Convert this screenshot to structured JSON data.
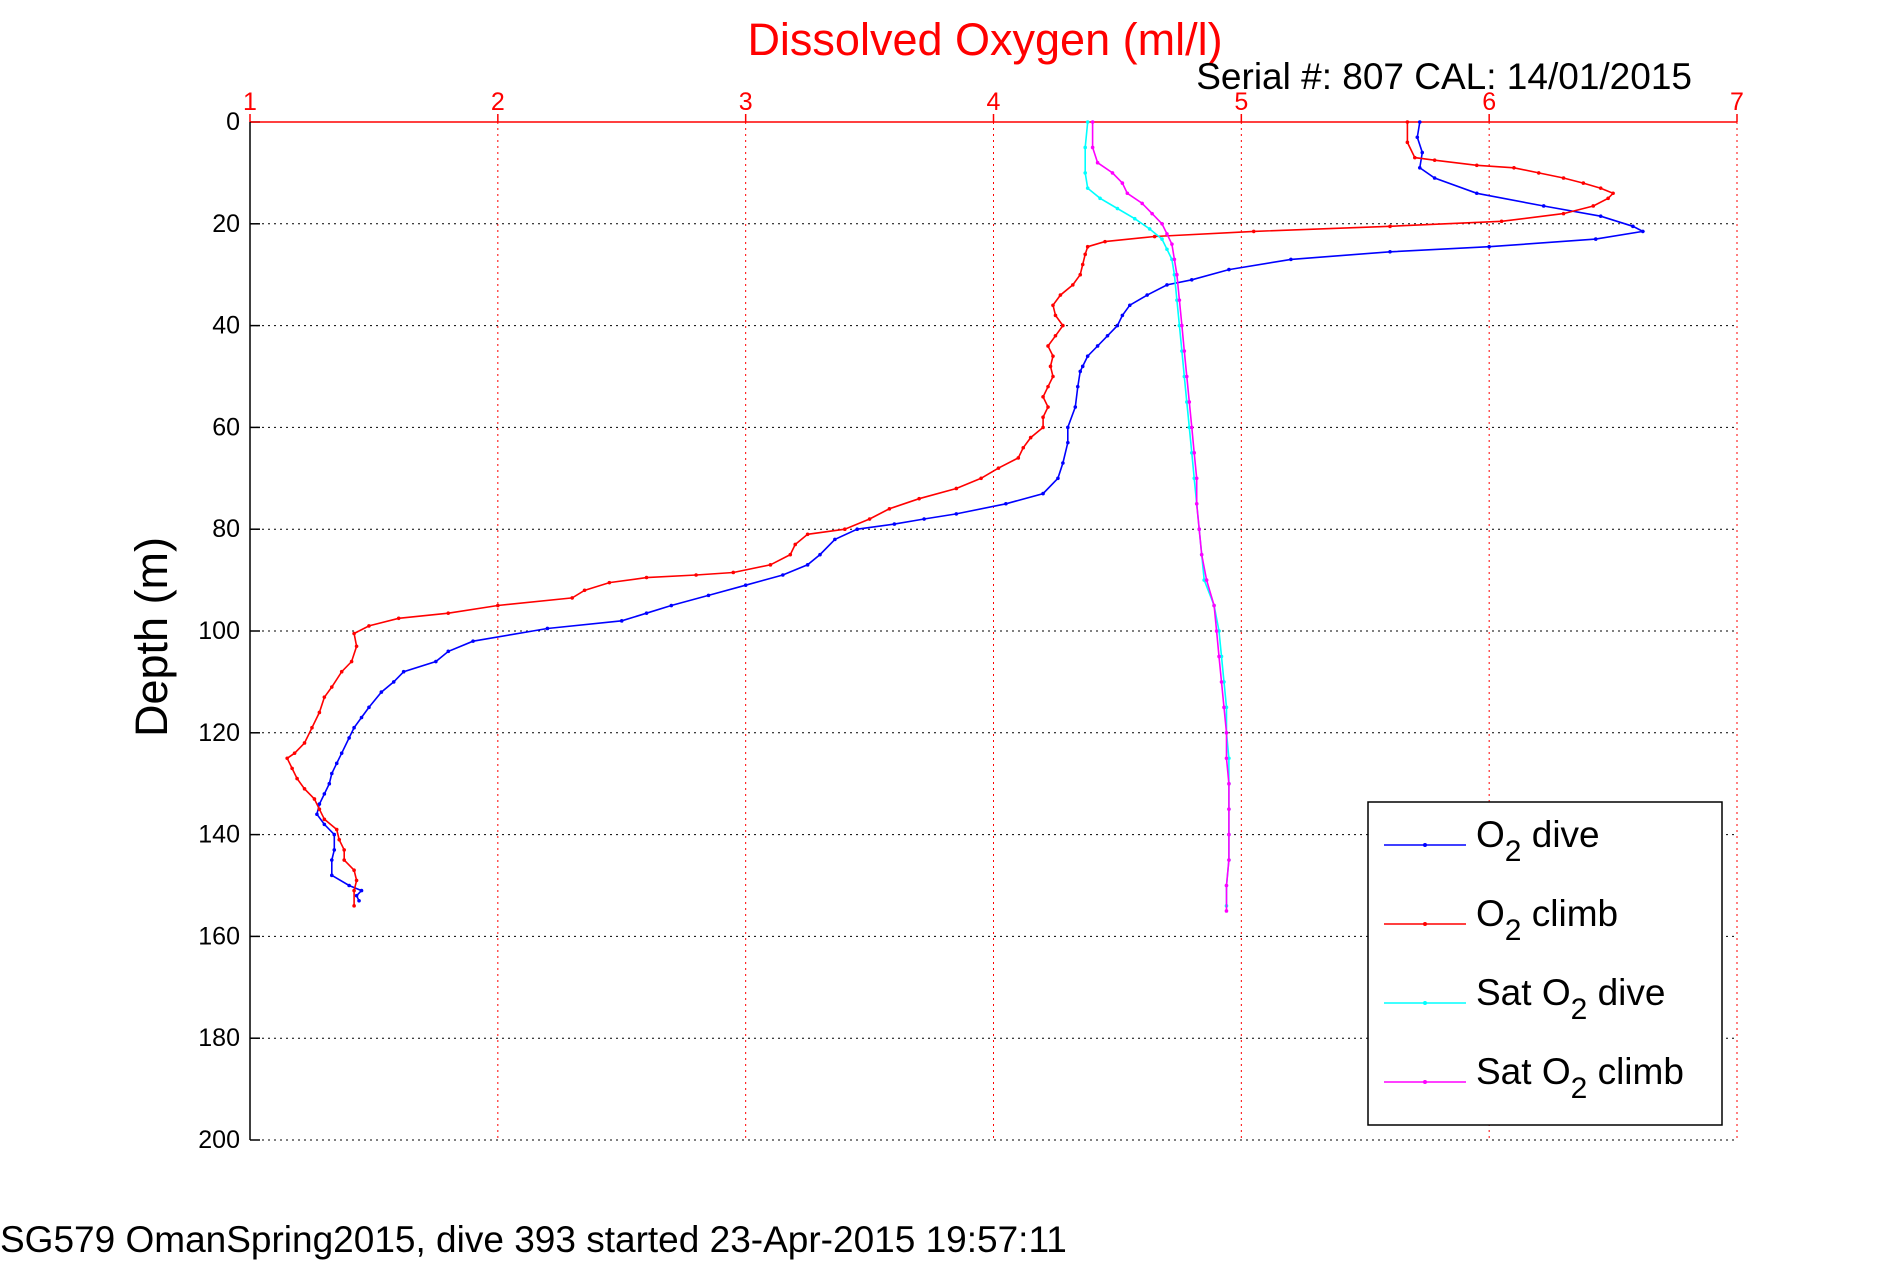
{
  "chart_data": {
    "type": "line",
    "title": "Dissolved Oxygen (ml/l)",
    "subtitle": "Serial #: 807  CAL: 14/01/2015",
    "ylabel": "Depth (m)",
    "footer": "SG579 OmanSpring2015, dive 393 started 23-Apr-2015 19:57:11",
    "x_axis_position": "top",
    "y_axis_reversed": true,
    "xlim": [
      1,
      7
    ],
    "ylim": [
      0,
      200
    ],
    "xticks": [
      "1",
      "2",
      "3",
      "4",
      "5",
      "6",
      "7"
    ],
    "yticks": [
      "0",
      "20",
      "40",
      "60",
      "80",
      "100",
      "120",
      "140",
      "160",
      "180",
      "200"
    ],
    "grid": true,
    "legend_position": "bottom-right",
    "colors": {
      "title": "#ff0000",
      "x_axis": "#ff0000",
      "y_axis": "#000000"
    },
    "series": [
      {
        "name": "O2 dive",
        "color": "#0000ff",
        "points": [
          [
            5.72,
            0
          ],
          [
            5.71,
            3
          ],
          [
            5.73,
            6
          ],
          [
            5.72,
            9
          ],
          [
            5.78,
            11
          ],
          [
            5.95,
            14
          ],
          [
            6.22,
            16.5
          ],
          [
            6.45,
            18.5
          ],
          [
            6.58,
            20.5
          ],
          [
            6.62,
            21.5
          ],
          [
            6.43,
            23
          ],
          [
            6.0,
            24.5
          ],
          [
            5.6,
            25.5
          ],
          [
            5.2,
            27
          ],
          [
            4.95,
            29
          ],
          [
            4.8,
            31
          ],
          [
            4.7,
            32
          ],
          [
            4.62,
            34
          ],
          [
            4.55,
            36
          ],
          [
            4.52,
            38
          ],
          [
            4.5,
            40
          ],
          [
            4.46,
            42
          ],
          [
            4.42,
            44
          ],
          [
            4.38,
            46
          ],
          [
            4.36,
            48
          ],
          [
            4.35,
            49
          ],
          [
            4.34,
            52
          ],
          [
            4.33,
            56
          ],
          [
            4.3,
            60
          ],
          [
            4.3,
            63
          ],
          [
            4.28,
            67
          ],
          [
            4.26,
            70
          ],
          [
            4.2,
            73
          ],
          [
            4.05,
            75
          ],
          [
            3.85,
            77
          ],
          [
            3.72,
            78
          ],
          [
            3.6,
            79
          ],
          [
            3.45,
            80
          ],
          [
            3.36,
            82
          ],
          [
            3.3,
            85
          ],
          [
            3.25,
            87
          ],
          [
            3.15,
            89
          ],
          [
            3.0,
            91
          ],
          [
            2.85,
            93
          ],
          [
            2.7,
            95
          ],
          [
            2.6,
            96.5
          ],
          [
            2.5,
            98
          ],
          [
            2.2,
            99.5
          ],
          [
            1.9,
            102
          ],
          [
            1.8,
            104
          ],
          [
            1.75,
            106
          ],
          [
            1.62,
            108
          ],
          [
            1.58,
            110
          ],
          [
            1.53,
            112
          ],
          [
            1.48,
            115
          ],
          [
            1.45,
            117
          ],
          [
            1.42,
            119
          ],
          [
            1.4,
            121
          ],
          [
            1.37,
            124
          ],
          [
            1.35,
            126
          ],
          [
            1.33,
            128
          ],
          [
            1.32,
            130
          ],
          [
            1.3,
            132
          ],
          [
            1.28,
            134
          ],
          [
            1.27,
            136
          ],
          [
            1.3,
            138
          ],
          [
            1.34,
            140
          ],
          [
            1.34,
            143
          ],
          [
            1.33,
            145
          ],
          [
            1.33,
            148
          ],
          [
            1.4,
            150
          ],
          [
            1.45,
            151
          ],
          [
            1.43,
            152
          ],
          [
            1.44,
            153
          ]
        ]
      },
      {
        "name": "O2 climb",
        "color": "#ff0000",
        "points": [
          [
            5.67,
            0
          ],
          [
            5.67,
            4
          ],
          [
            5.7,
            7
          ],
          [
            5.78,
            7.5
          ],
          [
            5.95,
            8.5
          ],
          [
            6.1,
            9
          ],
          [
            6.2,
            10
          ],
          [
            6.3,
            11
          ],
          [
            6.38,
            12
          ],
          [
            6.45,
            13
          ],
          [
            6.5,
            14
          ],
          [
            6.48,
            15
          ],
          [
            6.42,
            16.5
          ],
          [
            6.3,
            18
          ],
          [
            6.05,
            19.5
          ],
          [
            5.6,
            20.5
          ],
          [
            5.05,
            21.5
          ],
          [
            4.65,
            22.5
          ],
          [
            4.45,
            23.5
          ],
          [
            4.38,
            24.5
          ],
          [
            4.37,
            26
          ],
          [
            4.36,
            28
          ],
          [
            4.35,
            30
          ],
          [
            4.32,
            32
          ],
          [
            4.27,
            34
          ],
          [
            4.24,
            36
          ],
          [
            4.25,
            38
          ],
          [
            4.28,
            40
          ],
          [
            4.25,
            42
          ],
          [
            4.22,
            44
          ],
          [
            4.24,
            46
          ],
          [
            4.23,
            48
          ],
          [
            4.24,
            50
          ],
          [
            4.22,
            52
          ],
          [
            4.2,
            54
          ],
          [
            4.22,
            56
          ],
          [
            4.2,
            58
          ],
          [
            4.2,
            60
          ],
          [
            4.15,
            62
          ],
          [
            4.12,
            64
          ],
          [
            4.1,
            66
          ],
          [
            4.02,
            68
          ],
          [
            3.95,
            70
          ],
          [
            3.85,
            72
          ],
          [
            3.7,
            74
          ],
          [
            3.58,
            76
          ],
          [
            3.5,
            78
          ],
          [
            3.4,
            80
          ],
          [
            3.25,
            81
          ],
          [
            3.2,
            83
          ],
          [
            3.18,
            85
          ],
          [
            3.1,
            87
          ],
          [
            2.95,
            88.5
          ],
          [
            2.8,
            89
          ],
          [
            2.6,
            89.5
          ],
          [
            2.45,
            90.5
          ],
          [
            2.35,
            92
          ],
          [
            2.3,
            93.5
          ],
          [
            2.0,
            95
          ],
          [
            1.8,
            96.5
          ],
          [
            1.6,
            97.5
          ],
          [
            1.48,
            99
          ],
          [
            1.42,
            100.5
          ],
          [
            1.43,
            103
          ],
          [
            1.41,
            106
          ],
          [
            1.37,
            108
          ],
          [
            1.33,
            111
          ],
          [
            1.3,
            113
          ],
          [
            1.28,
            116
          ],
          [
            1.25,
            119
          ],
          [
            1.22,
            122
          ],
          [
            1.18,
            124
          ],
          [
            1.15,
            125
          ],
          [
            1.17,
            127
          ],
          [
            1.19,
            129
          ],
          [
            1.22,
            131
          ],
          [
            1.26,
            133
          ],
          [
            1.28,
            135
          ],
          [
            1.3,
            137
          ],
          [
            1.35,
            139
          ],
          [
            1.36,
            141
          ],
          [
            1.38,
            143
          ],
          [
            1.38,
            145
          ],
          [
            1.42,
            147
          ],
          [
            1.43,
            149
          ],
          [
            1.42,
            151
          ],
          [
            1.42,
            154
          ]
        ]
      },
      {
        "name": "Sat O2 dive",
        "color": "#00ffff",
        "points": [
          [
            4.38,
            0
          ],
          [
            4.37,
            5
          ],
          [
            4.37,
            10
          ],
          [
            4.38,
            13
          ],
          [
            4.43,
            15
          ],
          [
            4.5,
            17
          ],
          [
            4.57,
            19
          ],
          [
            4.63,
            21
          ],
          [
            4.68,
            23
          ],
          [
            4.7,
            25
          ],
          [
            4.72,
            27
          ],
          [
            4.73,
            30
          ],
          [
            4.74,
            35
          ],
          [
            4.75,
            40
          ],
          [
            4.76,
            45
          ],
          [
            4.77,
            50
          ],
          [
            4.78,
            55
          ],
          [
            4.79,
            60
          ],
          [
            4.8,
            65
          ],
          [
            4.81,
            70
          ],
          [
            4.82,
            75
          ],
          [
            4.83,
            80
          ],
          [
            4.84,
            85
          ],
          [
            4.85,
            90
          ],
          [
            4.89,
            95
          ],
          [
            4.91,
            100
          ],
          [
            4.92,
            105
          ],
          [
            4.93,
            110
          ],
          [
            4.94,
            115
          ],
          [
            4.94,
            120
          ],
          [
            4.95,
            125
          ],
          [
            4.95,
            130
          ],
          [
            4.95,
            135
          ],
          [
            4.95,
            140
          ],
          [
            4.95,
            145
          ],
          [
            4.94,
            150
          ],
          [
            4.94,
            154
          ]
        ]
      },
      {
        "name": "Sat O2 climb",
        "color": "#ff00ff",
        "points": [
          [
            4.4,
            0
          ],
          [
            4.4,
            5
          ],
          [
            4.42,
            8
          ],
          [
            4.48,
            10
          ],
          [
            4.52,
            12
          ],
          [
            4.54,
            14
          ],
          [
            4.6,
            16
          ],
          [
            4.64,
            18
          ],
          [
            4.68,
            20
          ],
          [
            4.7,
            22
          ],
          [
            4.72,
            24
          ],
          [
            4.73,
            27
          ],
          [
            4.74,
            30
          ],
          [
            4.75,
            35
          ],
          [
            4.76,
            40
          ],
          [
            4.77,
            45
          ],
          [
            4.78,
            50
          ],
          [
            4.79,
            55
          ],
          [
            4.8,
            60
          ],
          [
            4.81,
            65
          ],
          [
            4.82,
            70
          ],
          [
            4.82,
            75
          ],
          [
            4.83,
            80
          ],
          [
            4.84,
            85
          ],
          [
            4.86,
            90
          ],
          [
            4.89,
            95
          ],
          [
            4.9,
            100
          ],
          [
            4.91,
            105
          ],
          [
            4.92,
            110
          ],
          [
            4.93,
            115
          ],
          [
            4.94,
            120
          ],
          [
            4.94,
            125
          ],
          [
            4.95,
            130
          ],
          [
            4.95,
            135
          ],
          [
            4.95,
            140
          ],
          [
            4.95,
            145
          ],
          [
            4.94,
            150
          ],
          [
            4.94,
            155
          ]
        ]
      }
    ]
  }
}
